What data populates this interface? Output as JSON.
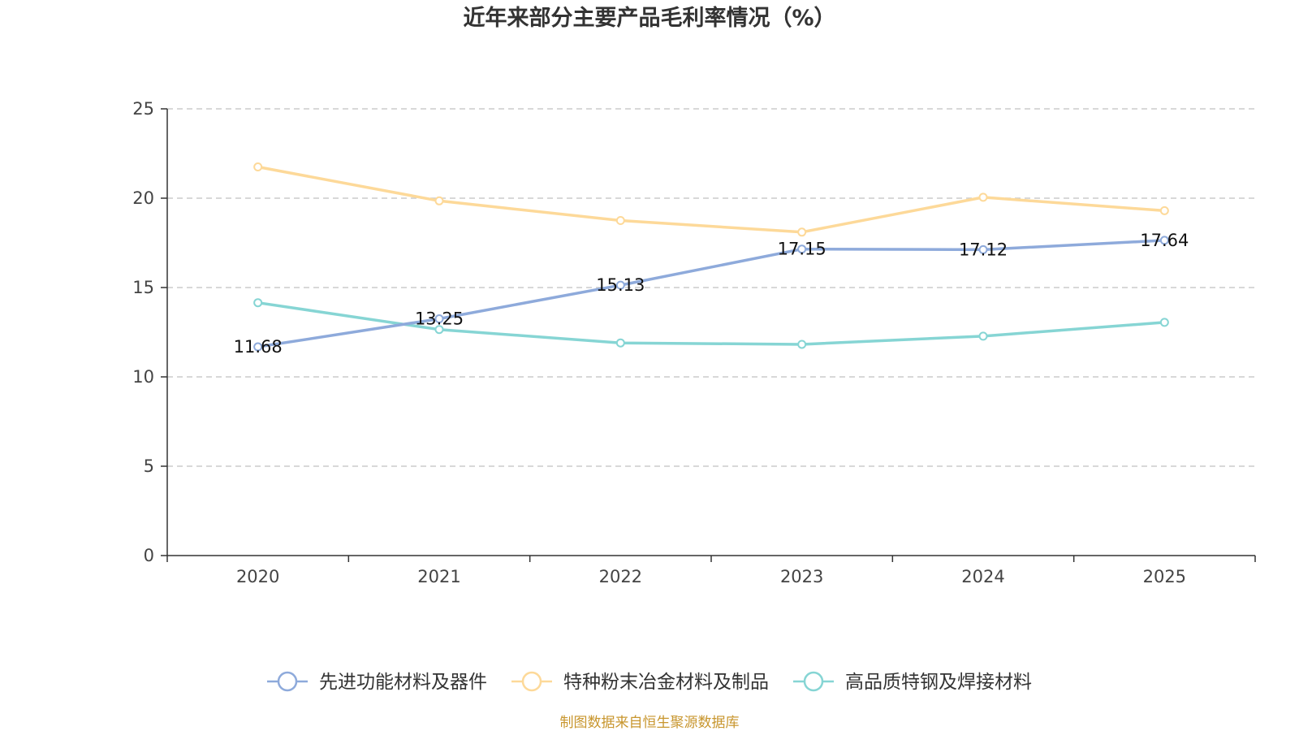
{
  "chart_data": {
    "type": "line",
    "title": "近年来部分主要产品毛利率情况（%）",
    "categories": [
      "2020",
      "2021",
      "2022",
      "2023",
      "2024",
      "2025"
    ],
    "ylim": [
      0,
      25
    ],
    "yticks": [
      0,
      5,
      10,
      15,
      20,
      25
    ],
    "grid": true,
    "legend_position": "bottom",
    "series": [
      {
        "name": "先进功能材料及器件",
        "color": "#8eaadb",
        "values": [
          11.68,
          13.25,
          15.13,
          17.15,
          17.12,
          17.64
        ],
        "labels": [
          "11.68",
          "13.25",
          "15.13",
          "17.15",
          "17.12",
          "17.64"
        ]
      },
      {
        "name": "特种粉末冶金材料及制品",
        "color": "#fdd999",
        "values": [
          21.75,
          19.85,
          18.75,
          18.1,
          20.05,
          19.3
        ],
        "labels": null
      },
      {
        "name": "高品质特钢及焊接材料",
        "color": "#86d5d4",
        "values": [
          14.15,
          12.65,
          11.9,
          11.82,
          12.28,
          13.05
        ],
        "labels": null
      }
    ]
  },
  "source": "制图数据来自恒生聚源数据库"
}
